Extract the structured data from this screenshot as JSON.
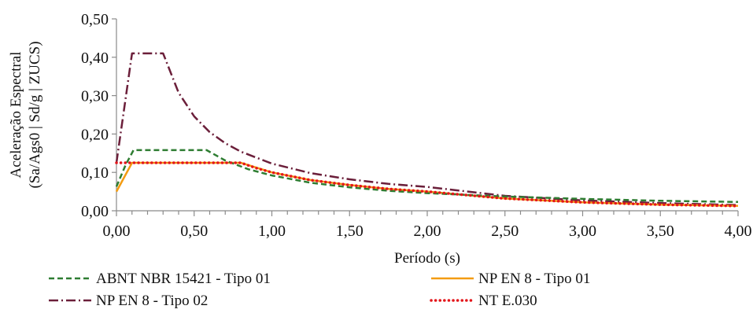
{
  "chart_data": {
    "type": "line",
    "title": "",
    "xlabel": "Período (s)",
    "ylabel_lines": [
      "Aceleração Espectral",
      "(Sa/Ags0 | Sd/g | ZUCS)"
    ],
    "xlim": [
      0,
      4.0
    ],
    "ylim": [
      0,
      0.5
    ],
    "xticks": [
      "0,00",
      "0,50",
      "1,00",
      "1,50",
      "2,00",
      "2,50",
      "3,00",
      "3,50",
      "4,00"
    ],
    "yticks": [
      "0,00",
      "0,10",
      "0,20",
      "0,30",
      "0,40",
      "0,50"
    ],
    "grid": false,
    "legend_position": "bottom",
    "series": [
      {
        "name": "ABNT NBR 15421 - Tipo 01",
        "color": "#2e7d32",
        "style": "dashed",
        "x": [
          0.0,
          0.06,
          0.11,
          0.3,
          0.58,
          0.7,
          0.85,
          1.0,
          1.25,
          1.5,
          1.75,
          2.0,
          2.5,
          3.0,
          3.5,
          4.0
        ],
        "y": [
          0.063,
          0.12,
          0.158,
          0.158,
          0.158,
          0.131,
          0.108,
          0.092,
          0.073,
          0.061,
          0.052,
          0.046,
          0.037,
          0.031,
          0.026,
          0.023
        ]
      },
      {
        "name": "NP EN 8 - Tipo 01",
        "color": "#f39c12",
        "style": "solid",
        "x": [
          0.0,
          0.1,
          0.2,
          0.4,
          0.6,
          0.8,
          1.0,
          1.25,
          1.5,
          1.75,
          2.0,
          2.5,
          3.0,
          3.5,
          4.0
        ],
        "y": [
          0.05,
          0.125,
          0.125,
          0.125,
          0.125,
          0.125,
          0.1,
          0.08,
          0.067,
          0.057,
          0.05,
          0.032,
          0.022,
          0.016,
          0.013
        ]
      },
      {
        "name": "NP EN 8 - Tipo 02",
        "color": "#6b1f3a",
        "style": "dashdot",
        "x": [
          0.0,
          0.1,
          0.2,
          0.3,
          0.4,
          0.5,
          0.6,
          0.7,
          0.8,
          1.0,
          1.25,
          1.5,
          1.75,
          2.0,
          2.5,
          3.0,
          3.5,
          4.0
        ],
        "y": [
          0.125,
          0.41,
          0.41,
          0.41,
          0.3075,
          0.246,
          0.205,
          0.176,
          0.154,
          0.123,
          0.098,
          0.082,
          0.07,
          0.062,
          0.039,
          0.027,
          0.02,
          0.015
        ]
      },
      {
        "name": "NT E.030",
        "color": "#e3161b",
        "style": "dotted",
        "x": [
          0.0,
          0.4,
          0.8,
          0.9,
          1.0,
          1.25,
          1.5,
          1.75,
          2.0,
          2.5,
          3.0,
          3.5,
          4.0
        ],
        "y": [
          0.125,
          0.125,
          0.125,
          0.111,
          0.1,
          0.08,
          0.067,
          0.057,
          0.05,
          0.032,
          0.022,
          0.016,
          0.0125
        ]
      }
    ]
  }
}
